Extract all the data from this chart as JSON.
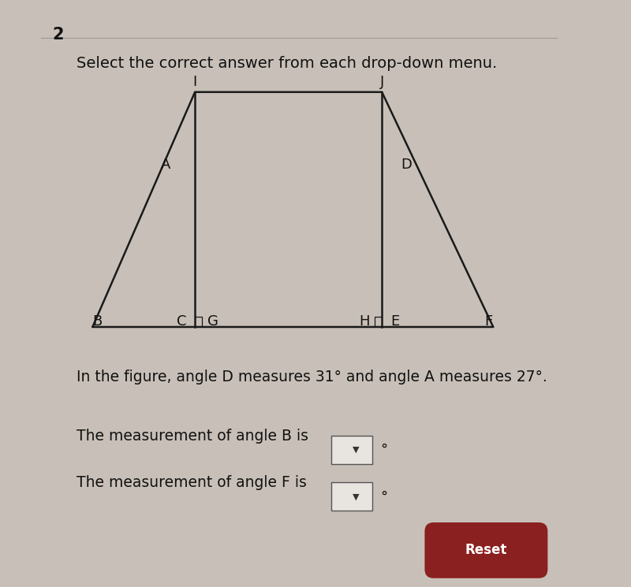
{
  "background_color": "#c8c0b8",
  "title_number": "2",
  "instruction": "Select the correct answer from each drop-down menu.",
  "figure_text": "In the figure, angle D measures 31° and angle A measures 27°.",
  "question1": "The measurement of angle B is",
  "question2": "The measurement of angle F is",
  "degree_symbol": "°",
  "line_color": "#1a1a1a",
  "line_width": 1.8,
  "font_size_labels": 13,
  "font_size_instruction": 14,
  "font_size_text": 13,
  "font_size_number": 14,
  "reset_button_color": "#8b2020",
  "reset_button_text_color": "#ffffff",
  "reset_button_label": "Reset"
}
